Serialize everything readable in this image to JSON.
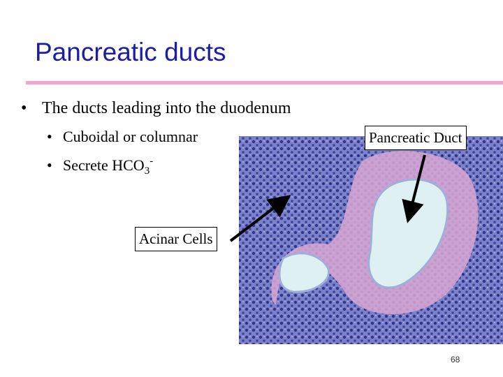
{
  "header": {
    "title": "Pancreatic ducts"
  },
  "bullets": [
    {
      "text": "The ducts leading into the duodenum",
      "children": [
        {
          "text": "Cuboidal or columnar"
        },
        {
          "text": "Secrete HCO",
          "subscript": "3",
          "superscript": "-"
        }
      ]
    }
  ],
  "figure": {
    "labels": [
      "Pancreatic Duct",
      "Acinar Cells"
    ]
  },
  "footer": {
    "page_number": "68"
  }
}
